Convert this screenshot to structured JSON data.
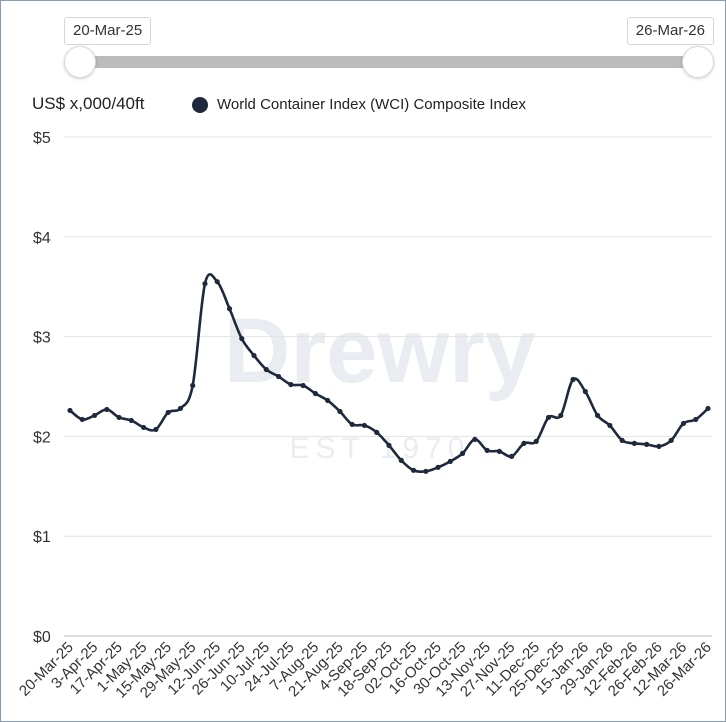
{
  "range_selector": {
    "start_label": "20-Mar-25",
    "end_label": "26-Mar-26"
  },
  "watermark": {
    "brand": "Drewry",
    "est": "EST 1970"
  },
  "colors": {
    "series": "#1e2a3c",
    "grid": "#e3e3e3",
    "axis_text": "#333333"
  },
  "chart_data": {
    "type": "line",
    "title": "",
    "xlabel": "",
    "ylabel": "US$ x,000/40ft",
    "ylim": [
      0,
      5
    ],
    "yticks": [
      0,
      1,
      2,
      3,
      4,
      5
    ],
    "ytick_labels": [
      "$0",
      "$1",
      "$2",
      "$3",
      "$4",
      "$5"
    ],
    "legend": [
      "World Container Index (WCI) Composite Index"
    ],
    "x_tick_labels": [
      "20-Mar-25",
      "3-Apr-25",
      "17-Apr-25",
      "1-May-25",
      "15-May-25",
      "29-May-25",
      "12-Jun-25",
      "26-Jun-25",
      "10-Jul-25",
      "24-Jul-25",
      "7-Aug-25",
      "21-Aug-25",
      "4-Sep-25",
      "18-Sep-25",
      "02-Oct-25",
      "16-Oct-25",
      "30-Oct-25",
      "13-Nov-25",
      "27-Nov-25",
      "11-Dec-25",
      "25-Dec-25",
      "15-Jan-26",
      "29-Jan-26",
      "12-Feb-26",
      "26-Feb-26",
      "12-Mar-26",
      "26-Mar-26"
    ],
    "series": [
      {
        "name": "World Container Index (WCI) Composite Index",
        "values": [
          2.26,
          2.17,
          2.21,
          2.27,
          2.19,
          2.16,
          2.09,
          2.07,
          2.24,
          2.28,
          2.51,
          3.53,
          3.55,
          3.28,
          2.98,
          2.81,
          2.67,
          2.6,
          2.52,
          2.51,
          2.43,
          2.36,
          2.25,
          2.12,
          2.11,
          2.04,
          1.91,
          1.76,
          1.66,
          1.65,
          1.69,
          1.75,
          1.83,
          1.97,
          1.86,
          1.85,
          1.8,
          1.93,
          1.95,
          2.19,
          2.21,
          2.57,
          2.45,
          2.21,
          2.11,
          1.96,
          1.93,
          1.92,
          1.9,
          1.96,
          2.13,
          2.17,
          2.28
        ]
      }
    ]
  }
}
